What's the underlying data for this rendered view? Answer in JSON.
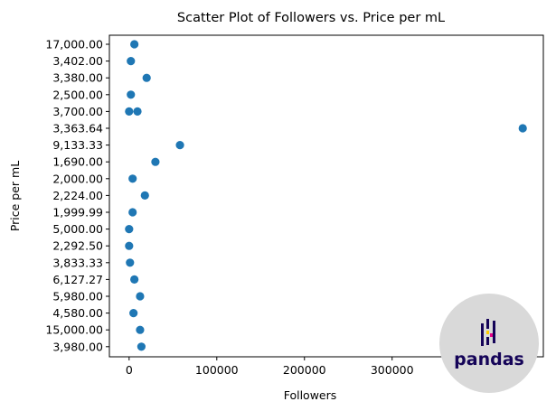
{
  "chart_data": {
    "type": "scatter",
    "title": "Scatter Plot of Followers vs. Price per mL",
    "xlabel": "Followers",
    "ylabel": "Price per mL",
    "xlim": [
      -22500,
      472500
    ],
    "x_ticks": [
      0,
      100000,
      200000,
      300000,
      400000
    ],
    "y_categories": [
      "17,000.00",
      "3,402.00",
      "3,380.00",
      "2,500.00",
      "3,700.00",
      "3,363.64",
      "9,133.33",
      "1,690.00",
      "2,000.00",
      "2,224.00",
      "1,999.99",
      "5,000.00",
      "2,292.50",
      "3,833.33",
      "6,127.27",
      "5,980.00",
      "4,580.00",
      "15,000.00",
      "3,980.00"
    ],
    "points": [
      {
        "x": 6000,
        "y": "17,000.00"
      },
      {
        "x": 2000,
        "y": "3,402.00"
      },
      {
        "x": 20000,
        "y": "3,380.00"
      },
      {
        "x": 2000,
        "y": "2,500.00"
      },
      {
        "x": 0,
        "y": "3,700.00"
      },
      {
        "x": 9500,
        "y": "3,700.00"
      },
      {
        "x": 449000,
        "y": "3,363.64"
      },
      {
        "x": 58000,
        "y": "9,133.33"
      },
      {
        "x": 30000,
        "y": "1,690.00"
      },
      {
        "x": 4000,
        "y": "2,000.00"
      },
      {
        "x": 18000,
        "y": "2,224.00"
      },
      {
        "x": 4000,
        "y": "1,999.99"
      },
      {
        "x": 0,
        "y": "5,000.00"
      },
      {
        "x": 0,
        "y": "2,292.50"
      },
      {
        "x": 1000,
        "y": "3,833.33"
      },
      {
        "x": 6000,
        "y": "6,127.27"
      },
      {
        "x": 12500,
        "y": "5,980.00"
      },
      {
        "x": 5000,
        "y": "4,580.00"
      },
      {
        "x": 12500,
        "y": "15,000.00"
      },
      {
        "x": 14000,
        "y": "3,980.00"
      }
    ],
    "point_color": "#1f77b4",
    "grid": false,
    "legend": false
  },
  "watermark": {
    "text": "pandas",
    "circle_color": "#d9d9d9",
    "text_color": "#150458",
    "accent_colors": [
      "#ffca00",
      "#e70488"
    ]
  }
}
